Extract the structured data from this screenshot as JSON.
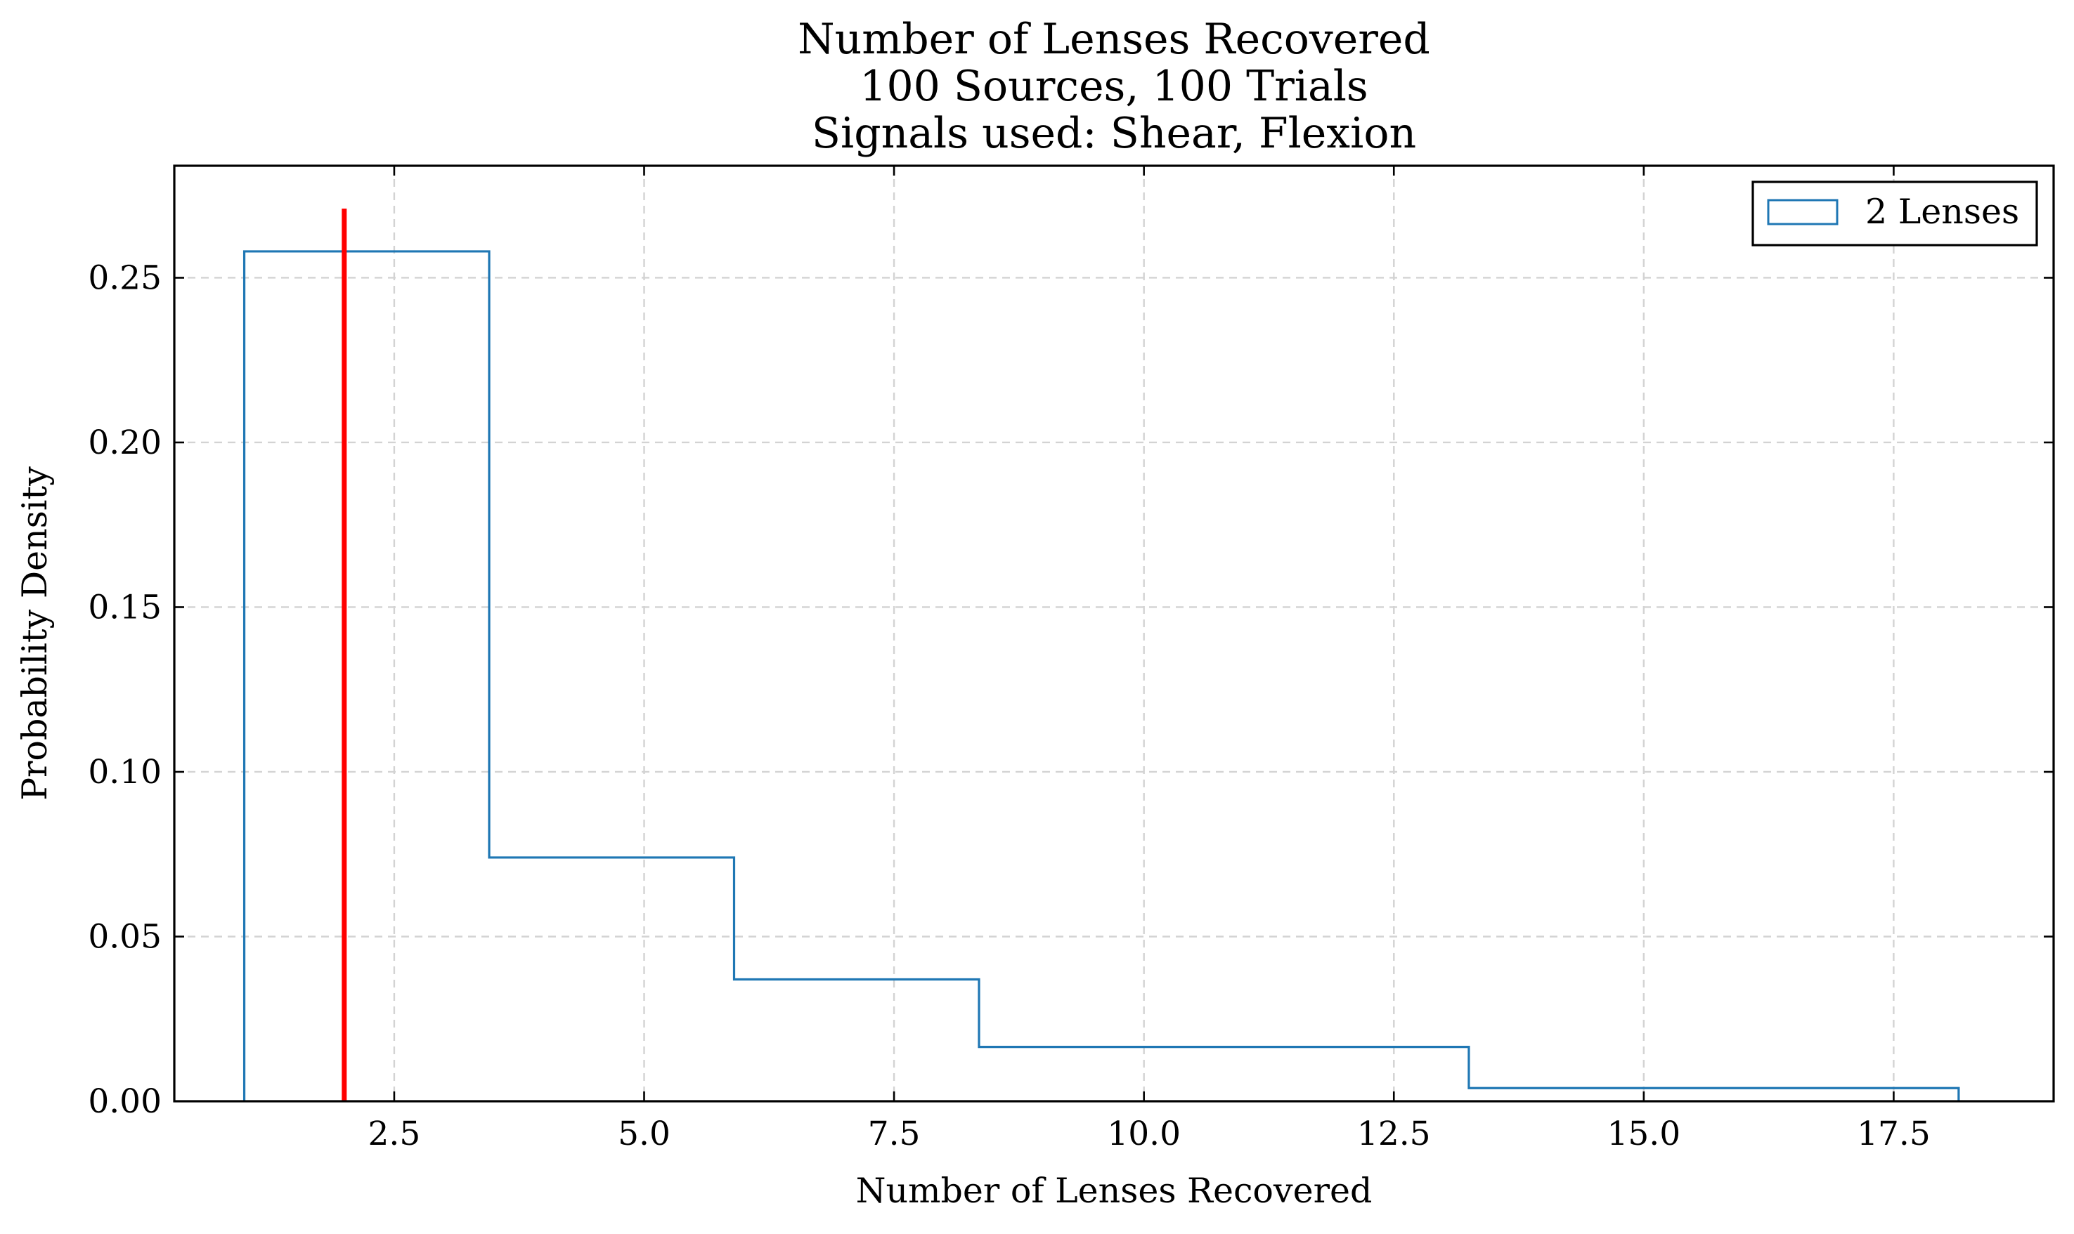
{
  "chart_data": {
    "type": "histogram",
    "title": [
      "Number of Lenses Recovered",
      "100 Sources, 100 Trials",
      "Signals used: Shear, Flexion"
    ],
    "xlabel": "Number of Lenses Recovered",
    "ylabel": "Probability Density",
    "xlim": [
      0.3,
      19.1
    ],
    "ylim": [
      0,
      0.284
    ],
    "xticks": [
      2.5,
      5.0,
      7.5,
      10.0,
      12.5,
      15.0,
      17.5
    ],
    "xtick_labels": [
      "2.5",
      "5.0",
      "7.5",
      "10.0",
      "12.5",
      "15.0",
      "17.5"
    ],
    "yticks": [
      0.0,
      0.05,
      0.1,
      0.15,
      0.2,
      0.25
    ],
    "ytick_labels": [
      "0.00",
      "0.05",
      "0.10",
      "0.15",
      "0.20",
      "0.25"
    ],
    "grid": true,
    "legend_position": "top-right",
    "series": [
      {
        "name": "2 Lenses",
        "style": "step",
        "color": "#1f77b4",
        "bin_edges": [
          1.0,
          3.45,
          5.9,
          8.35,
          13.25,
          18.15
        ],
        "densities": [
          0.258,
          0.074,
          0.037,
          0.0165,
          0.004
        ]
      }
    ],
    "reference_line": {
      "x": 2,
      "y_top": 0.271,
      "color": "#ff0000"
    }
  }
}
